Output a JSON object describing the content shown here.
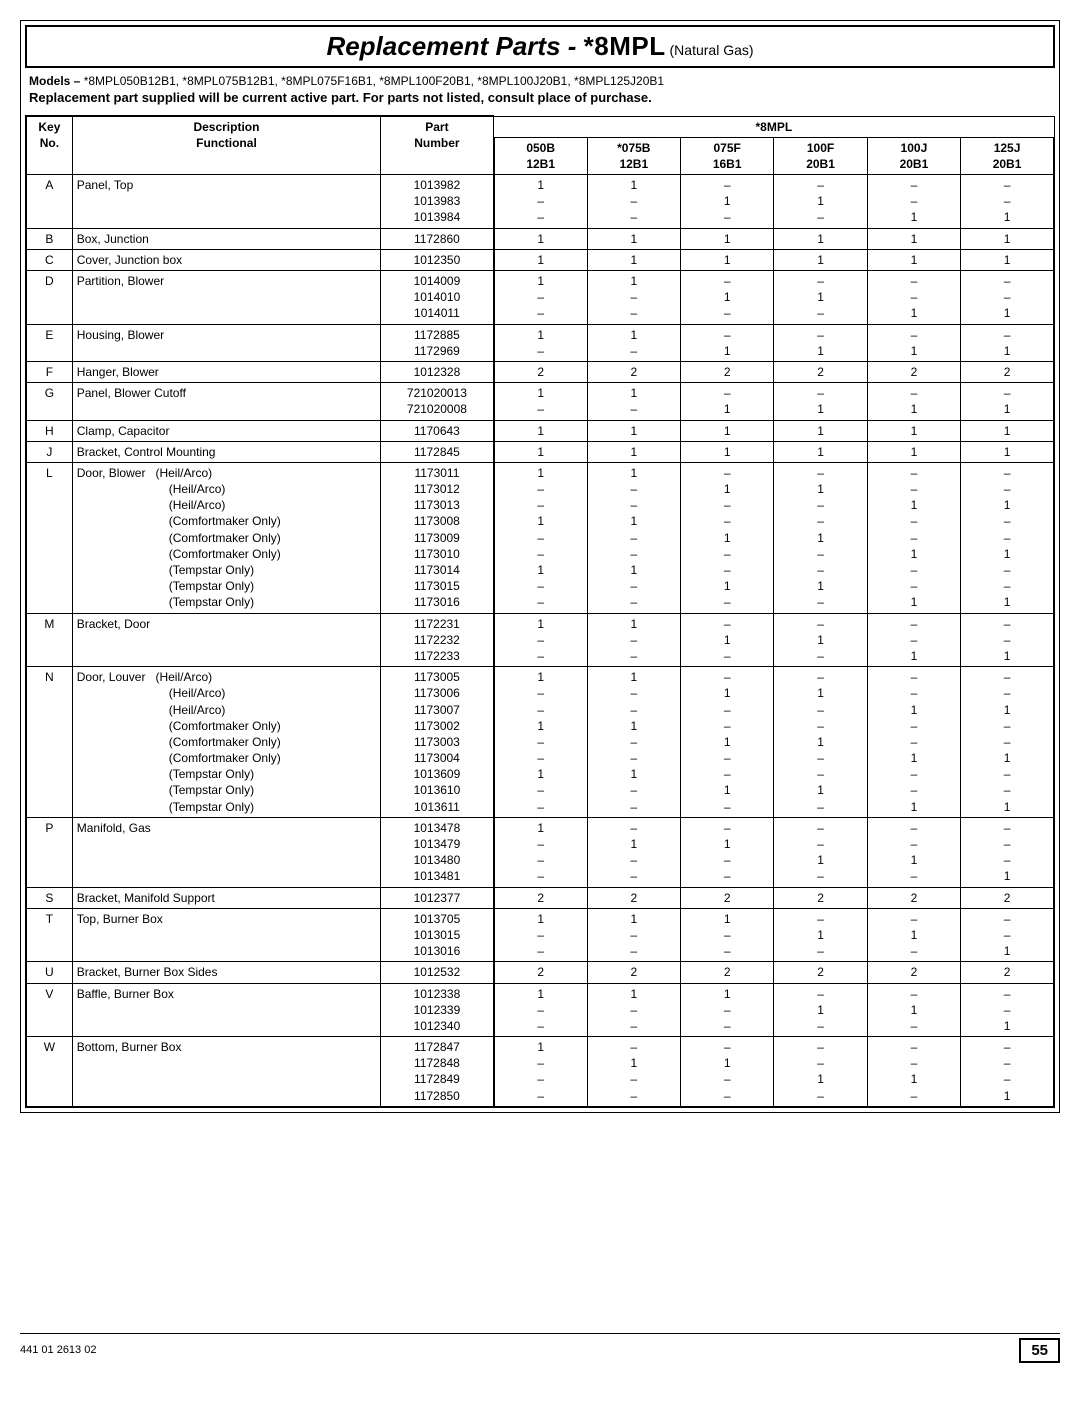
{
  "title": {
    "main": "Replacement Parts - ",
    "model": "*8MPL",
    "gas": " (Natural Gas)"
  },
  "models_line": {
    "label": "Models – ",
    "text": "*8MPL050B12B1, *8MPL075B12B1,  *8MPL075F16B1, *8MPL100F20B1, *8MPL100J20B1, *8MPL125J20B1"
  },
  "supplied_line": "Replacement part supplied will be current active part.  For parts not listed, consult place of purchase.",
  "headers": {
    "key": "Key\nNo.",
    "desc": "Description\nFunctional",
    "part": "Part\nNumber",
    "group": "*8MPL",
    "cols": [
      "050B\n12B1",
      "*075B\n12B1",
      "075F\n16B1",
      "100F\n20B1",
      "100J\n20B1",
      "125J\n20B1"
    ]
  },
  "rows": [
    {
      "k": "A",
      "d": "Panel, Top",
      "p": [
        "1013982",
        "1013983",
        "1013984"
      ],
      "q": [
        [
          "1",
          "–",
          "–"
        ],
        [
          "1",
          "–",
          "–"
        ],
        [
          "–",
          "1",
          "–"
        ],
        [
          "–",
          "1",
          "–"
        ],
        [
          "–",
          "–",
          "1"
        ],
        [
          "–",
          "–",
          "1"
        ]
      ]
    },
    {
      "k": "B",
      "d": "Box, Junction",
      "p": [
        "1172860"
      ],
      "q": [
        [
          "1"
        ],
        [
          "1"
        ],
        [
          "1"
        ],
        [
          "1"
        ],
        [
          "1"
        ],
        [
          "1"
        ]
      ]
    },
    {
      "k": "C",
      "d": "Cover, Junction box",
      "p": [
        "1012350"
      ],
      "q": [
        [
          "1"
        ],
        [
          "1"
        ],
        [
          "1"
        ],
        [
          "1"
        ],
        [
          "1"
        ],
        [
          "1"
        ]
      ]
    },
    {
      "k": "D",
      "d": "Partition, Blower",
      "p": [
        "1014009",
        "1014010",
        "1014011"
      ],
      "q": [
        [
          "1",
          "–",
          "–"
        ],
        [
          "1",
          "–",
          "–"
        ],
        [
          "–",
          "1",
          "–"
        ],
        [
          "–",
          "1",
          "–"
        ],
        [
          "–",
          "–",
          "1"
        ],
        [
          "–",
          "–",
          "1"
        ]
      ]
    },
    {
      "k": "E",
      "d": "Housing, Blower",
      "p": [
        "1172885",
        "1172969"
      ],
      "q": [
        [
          "1",
          "–"
        ],
        [
          "1",
          "–"
        ],
        [
          "–",
          "1"
        ],
        [
          "–",
          "1"
        ],
        [
          "–",
          "1"
        ],
        [
          "–",
          "1"
        ]
      ]
    },
    {
      "k": "F",
      "d": "Hanger, Blower",
      "p": [
        "1012328"
      ],
      "q": [
        [
          "2"
        ],
        [
          "2"
        ],
        [
          "2"
        ],
        [
          "2"
        ],
        [
          "2"
        ],
        [
          "2"
        ]
      ]
    },
    {
      "k": "G",
      "d": "Panel, Blower Cutoff",
      "p": [
        "721020013",
        "721020008"
      ],
      "q": [
        [
          "1",
          "–"
        ],
        [
          "1",
          "–"
        ],
        [
          "–",
          "1"
        ],
        [
          "–",
          "1"
        ],
        [
          "–",
          "1"
        ],
        [
          "–",
          "1"
        ]
      ]
    },
    {
      "k": "H",
      "d": "Clamp, Capacitor",
      "p": [
        "1170643"
      ],
      "q": [
        [
          "1"
        ],
        [
          "1"
        ],
        [
          "1"
        ],
        [
          "1"
        ],
        [
          "1"
        ],
        [
          "1"
        ]
      ]
    },
    {
      "k": "J",
      "d": "Bracket, Control Mounting",
      "p": [
        "1172845"
      ],
      "q": [
        [
          "1"
        ],
        [
          "1"
        ],
        [
          "1"
        ],
        [
          "1"
        ],
        [
          "1"
        ],
        [
          "1"
        ]
      ]
    },
    {
      "k": "L",
      "d": "Door, Blower",
      "subs": [
        "(Heil/Arco)",
        "(Heil/Arco)",
        "(Heil/Arco)",
        "(Comfortmaker Only)",
        "(Comfortmaker Only)",
        "(Comfortmaker Only)",
        "(Tempstar Only)",
        "(Tempstar Only)",
        "(Tempstar Only)"
      ],
      "p": [
        "1173011",
        "1173012",
        "1173013",
        "1173008",
        "1173009",
        "1173010",
        "1173014",
        "1173015",
        "1173016"
      ],
      "q": [
        [
          "1",
          "–",
          "–",
          "1",
          "–",
          "–",
          "1",
          "–",
          "–"
        ],
        [
          "1",
          "–",
          "–",
          "1",
          "–",
          "–",
          "1",
          "–",
          "–"
        ],
        [
          "–",
          "1",
          "–",
          "–",
          "1",
          "–",
          "–",
          "1",
          "–"
        ],
        [
          "–",
          "1",
          "–",
          "–",
          "1",
          "–",
          "–",
          "1",
          "–"
        ],
        [
          "–",
          "–",
          "1",
          "–",
          "–",
          "1",
          "–",
          "–",
          "1"
        ],
        [
          "–",
          "–",
          "1",
          "–",
          "–",
          "1",
          "–",
          "–",
          "1"
        ]
      ]
    },
    {
      "k": "M",
      "d": "Bracket, Door",
      "p": [
        "1172231",
        "1172232",
        "1172233"
      ],
      "q": [
        [
          "1",
          "–",
          "–"
        ],
        [
          "1",
          "–",
          "–"
        ],
        [
          "–",
          "1",
          "–"
        ],
        [
          "–",
          "1",
          "–"
        ],
        [
          "–",
          "–",
          "1"
        ],
        [
          "–",
          "–",
          "1"
        ]
      ]
    },
    {
      "k": "N",
      "d": "Door, Louver",
      "subs": [
        "(Heil/Arco)",
        "(Heil/Arco)",
        "(Heil/Arco)",
        "(Comfortmaker Only)",
        "(Comfortmaker Only)",
        "(Comfortmaker Only)",
        "(Tempstar Only)",
        "(Tempstar Only)",
        "(Tempstar Only)"
      ],
      "p": [
        "1173005",
        "1173006",
        "1173007",
        "1173002",
        "1173003",
        "1173004",
        "1013609",
        "1013610",
        "1013611"
      ],
      "q": [
        [
          "1",
          "–",
          "–",
          "1",
          "–",
          "–",
          "1",
          "–",
          "–"
        ],
        [
          "1",
          "–",
          "–",
          "1",
          "–",
          "–",
          "1",
          "–",
          "–"
        ],
        [
          "–",
          "1",
          "–",
          "–",
          "1",
          "–",
          "–",
          "1",
          "–"
        ],
        [
          "–",
          "1",
          "–",
          "–",
          "1",
          "–",
          "–",
          "1",
          "–"
        ],
        [
          "–",
          "–",
          "1",
          "–",
          "–",
          "1",
          "–",
          "–",
          "1"
        ],
        [
          "–",
          "–",
          "1",
          "–",
          "–",
          "1",
          "–",
          "–",
          "1"
        ]
      ]
    },
    {
      "k": "P",
      "d": "Manifold, Gas",
      "p": [
        "1013478",
        "1013479",
        "1013480",
        "1013481"
      ],
      "q": [
        [
          "1",
          "–",
          "–",
          "–"
        ],
        [
          "–",
          "1",
          "–",
          "–"
        ],
        [
          "–",
          "1",
          "–",
          "–"
        ],
        [
          "–",
          "–",
          "1",
          "–"
        ],
        [
          "–",
          "–",
          "1",
          "–"
        ],
        [
          "–",
          "–",
          "–",
          "1"
        ]
      ]
    },
    {
      "k": "S",
      "d": "Bracket, Manifold Support",
      "p": [
        "1012377"
      ],
      "q": [
        [
          "2"
        ],
        [
          "2"
        ],
        [
          "2"
        ],
        [
          "2"
        ],
        [
          "2"
        ],
        [
          "2"
        ]
      ]
    },
    {
      "k": "T",
      "d": "Top, Burner Box",
      "p": [
        "1013705",
        "1013015",
        "1013016"
      ],
      "q": [
        [
          "1",
          "–",
          "–"
        ],
        [
          "1",
          "–",
          "–"
        ],
        [
          "1",
          "–",
          "–"
        ],
        [
          "–",
          "1",
          "–"
        ],
        [
          "–",
          "1",
          "–"
        ],
        [
          "–",
          "–",
          "1"
        ]
      ]
    },
    {
      "k": "U",
      "d": "Bracket, Burner Box Sides",
      "p": [
        "1012532"
      ],
      "q": [
        [
          "2"
        ],
        [
          "2"
        ],
        [
          "2"
        ],
        [
          "2"
        ],
        [
          "2"
        ],
        [
          "2"
        ]
      ]
    },
    {
      "k": "V",
      "d": "Baffle, Burner Box",
      "p": [
        "1012338",
        "1012339",
        "1012340"
      ],
      "q": [
        [
          "1",
          "–",
          "–"
        ],
        [
          "1",
          "–",
          "–"
        ],
        [
          "1",
          "–",
          "–"
        ],
        [
          "–",
          "1",
          "–"
        ],
        [
          "–",
          "1",
          "–"
        ],
        [
          "–",
          "–",
          "1"
        ]
      ]
    },
    {
      "k": "W",
      "d": "Bottom, Burner Box",
      "p": [
        "1172847",
        "1172848",
        "1172849",
        "1172850"
      ],
      "q": [
        [
          "1",
          "–",
          "–",
          "–"
        ],
        [
          "–",
          "1",
          "–",
          "–"
        ],
        [
          "–",
          "1",
          "–",
          "–"
        ],
        [
          "–",
          "–",
          "1",
          "–"
        ],
        [
          "–",
          "–",
          "1",
          "–"
        ],
        [
          "–",
          "–",
          "–",
          "1"
        ]
      ]
    }
  ],
  "footer": {
    "num": "441 01 2613 02",
    "page": "55"
  }
}
